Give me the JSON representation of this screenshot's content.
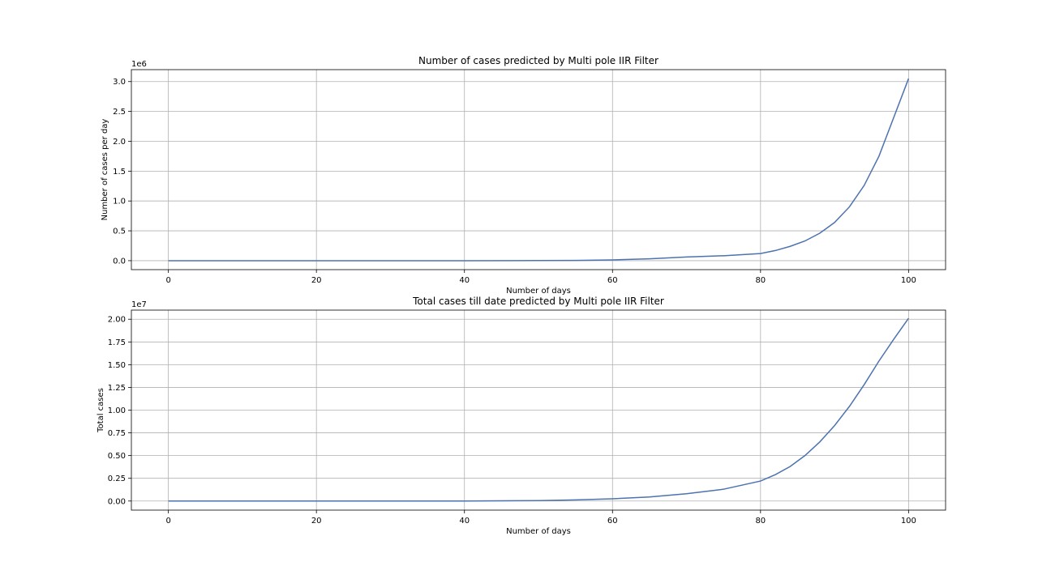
{
  "chart_data": [
    {
      "type": "line",
      "title": "Number of cases predicted by Multi pole IIR Filter",
      "xlabel": "Number of days",
      "ylabel": "Number of cases per day",
      "offset_text": "1e6",
      "xlim": [
        -5,
        105
      ],
      "ylim": [
        -150000,
        3200000
      ],
      "xticks": [
        0,
        20,
        40,
        60,
        80,
        100
      ],
      "xtick_labels": [
        "0",
        "20",
        "40",
        "60",
        "80",
        "100"
      ],
      "yticks": [
        0,
        500000,
        1000000,
        1500000,
        2000000,
        2500000,
        3000000
      ],
      "ytick_labels": [
        "0.0",
        "0.5",
        "1.0",
        "1.5",
        "2.0",
        "2.5",
        "3.0"
      ],
      "grid": true,
      "series": [
        {
          "color": "#4c72b0",
          "x": [
            0,
            10,
            20,
            30,
            40,
            50,
            55,
            60,
            65,
            70,
            75,
            80,
            82,
            84,
            86,
            88,
            90,
            92,
            94,
            96,
            98,
            100
          ],
          "y": [
            0,
            0,
            0,
            0,
            0,
            2000,
            5000,
            13000,
            32000,
            62000,
            83000,
            120000,
            170000,
            240000,
            330000,
            460000,
            640000,
            900000,
            1260000,
            1750000,
            2400000,
            3050000
          ]
        }
      ]
    },
    {
      "type": "line",
      "title": "Total cases till date predicted by Multi pole IIR Filter",
      "xlabel": "Number of days",
      "ylabel": "Total cases",
      "offset_text": "1e7",
      "xlim": [
        -5,
        105
      ],
      "ylim": [
        -1000000,
        21000000
      ],
      "xticks": [
        0,
        20,
        40,
        60,
        80,
        100
      ],
      "xtick_labels": [
        "0",
        "20",
        "40",
        "60",
        "80",
        "100"
      ],
      "yticks": [
        0,
        2500000,
        5000000,
        7500000,
        10000000,
        12500000,
        15000000,
        17500000,
        20000000
      ],
      "ytick_labels": [
        "0.00",
        "0.25",
        "0.50",
        "0.75",
        "1.00",
        "1.25",
        "1.50",
        "1.75",
        "2.00"
      ],
      "grid": true,
      "series": [
        {
          "color": "#4c72b0",
          "x": [
            0,
            10,
            20,
            30,
            40,
            50,
            55,
            60,
            65,
            70,
            75,
            80,
            82,
            84,
            86,
            88,
            90,
            92,
            94,
            96,
            98,
            100
          ],
          "y": [
            0,
            0,
            0,
            0,
            0,
            50000,
            120000,
            250000,
            450000,
            800000,
            1300000,
            2200000,
            2900000,
            3800000,
            5000000,
            6500000,
            8300000,
            10400000,
            12800000,
            15400000,
            17800000,
            20100000
          ]
        }
      ]
    }
  ]
}
